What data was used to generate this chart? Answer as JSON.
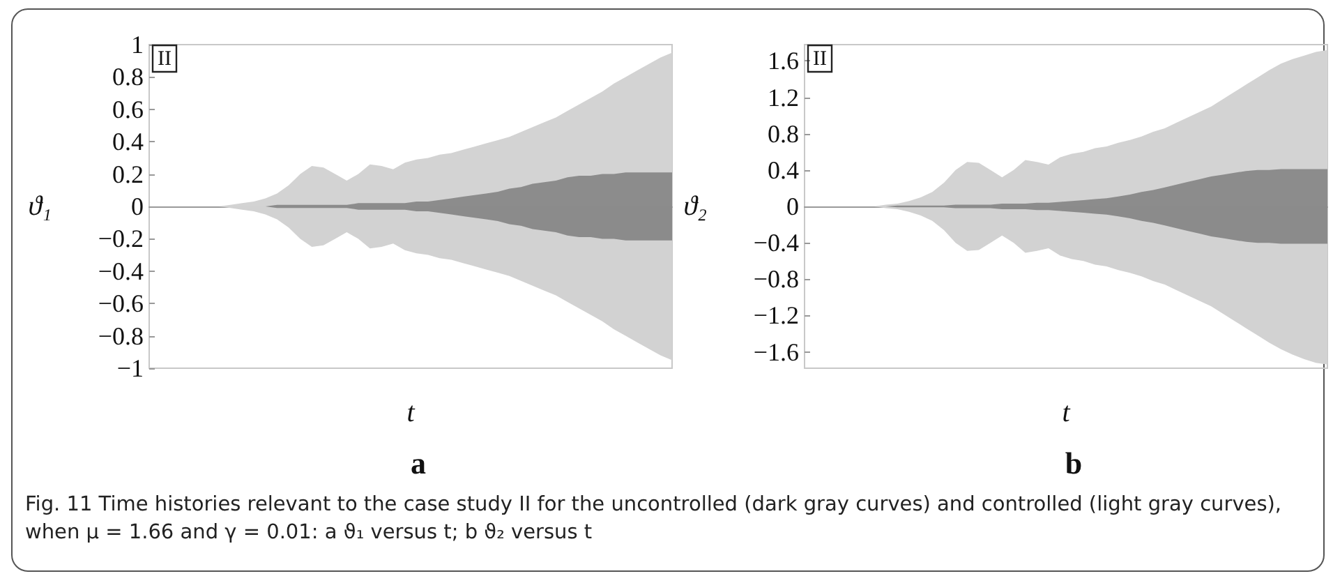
{
  "chart_data": [
    {
      "type": "area",
      "title": "a",
      "xlabel": "t",
      "ylabel": "ϑ₁",
      "ylim": [
        -1,
        1
      ],
      "yticks": [
        -1,
        -0.8,
        -0.6,
        -0.4,
        -0.2,
        0,
        0.2,
        0.4,
        0.6,
        0.8,
        1
      ],
      "tick_labels": "y",
      "categories": [
        null,
        null,
        null,
        null,
        null,
        null,
        null,
        null,
        null,
        null,
        null,
        null,
        null,
        null,
        null,
        null,
        null,
        null,
        null,
        null,
        null,
        null,
        null,
        null,
        null,
        null,
        null,
        null,
        null,
        null,
        null,
        null,
        null,
        null,
        null,
        null,
        null,
        null,
        null,
        null,
        null,
        null,
        null,
        null,
        null,
        null
      ],
      "annotations": [
        "II",
        "Fig. 11  Time histories relevant to the case study II for the uncontrolled (dark gray curves) and controlled (light gray curves), when μ = 1.66 and γ = 0.01: a ϑ₁ versus t; b ϑ₂ versus t"
      ],
      "series": [
        {
          "color": "#d3d3d3",
          "values": [
            0,
            0,
            0,
            0,
            0,
            0,
            0,
            0.01,
            0.02,
            0.03,
            0.05,
            0.08,
            0.13,
            0.2,
            0.25,
            0.24,
            0.2,
            0.16,
            0.2,
            0.26,
            0.25,
            0.23,
            0.27,
            0.29,
            0.3,
            0.32,
            0.33,
            0.35,
            0.37,
            0.39,
            0.41,
            0.43,
            0.46,
            0.49,
            0.52,
            0.55,
            0.59,
            0.63,
            0.67,
            0.71,
            0.76,
            0.8,
            0.84,
            0.88,
            0.92,
            0.95
          ]
        },
        {
          "color": "#d2d2d2",
          "values": [
            0,
            0,
            0,
            0,
            0,
            0,
            0,
            -0.01,
            -0.02,
            -0.03,
            -0.05,
            -0.08,
            -0.13,
            -0.2,
            -0.25,
            -0.24,
            -0.2,
            -0.16,
            -0.2,
            -0.26,
            -0.25,
            -0.23,
            -0.27,
            -0.29,
            -0.3,
            -0.32,
            -0.33,
            -0.35,
            -0.37,
            -0.39,
            -0.41,
            -0.43,
            -0.46,
            -0.49,
            -0.52,
            -0.55,
            -0.59,
            -0.63,
            -0.67,
            -0.71,
            -0.76,
            -0.8,
            -0.84,
            -0.88,
            -0.92,
            -0.95
          ]
        },
        {
          "color": "#8c8c8c",
          "values": [
            0,
            0,
            0,
            0,
            0,
            0,
            0,
            0,
            0,
            0,
            0,
            0.01,
            0.01,
            0.01,
            0.01,
            0.01,
            0.01,
            0.01,
            0.02,
            0.02,
            0.02,
            0.02,
            0.02,
            0.03,
            0.03,
            0.04,
            0.05,
            0.06,
            0.07,
            0.08,
            0.09,
            0.11,
            0.12,
            0.14,
            0.15,
            0.16,
            0.18,
            0.19,
            0.19,
            0.2,
            0.2,
            0.21,
            0.21,
            0.21,
            0.21,
            0.21
          ]
        },
        {
          "color": "#8b8b8b",
          "values": [
            0,
            0,
            0,
            0,
            0,
            0,
            0,
            0,
            0,
            0,
            0,
            -0.01,
            -0.01,
            -0.01,
            -0.01,
            -0.01,
            -0.01,
            -0.01,
            -0.02,
            -0.02,
            -0.02,
            -0.02,
            -0.02,
            -0.03,
            -0.03,
            -0.04,
            -0.05,
            -0.06,
            -0.07,
            -0.08,
            -0.09,
            -0.11,
            -0.12,
            -0.14,
            -0.15,
            -0.16,
            -0.18,
            -0.19,
            -0.19,
            -0.2,
            -0.2,
            -0.21,
            -0.21,
            -0.21,
            -0.21,
            -0.21
          ]
        }
      ]
    },
    {
      "type": "area",
      "title": "b",
      "xlabel": "t",
      "ylabel": "ϑ₂",
      "ylim": [
        -1.78,
        1.78
      ],
      "yticks": [
        -1.6,
        -1.2,
        -0.8,
        -0.4,
        0,
        0.4,
        0.8,
        1.2,
        1.6
      ],
      "tick_labels": "y",
      "categories": [
        null,
        null,
        null,
        null,
        null,
        null,
        null,
        null,
        null,
        null,
        null,
        null,
        null,
        null,
        null,
        null,
        null,
        null,
        null,
        null,
        null,
        null,
        null,
        null,
        null,
        null,
        null,
        null,
        null,
        null,
        null,
        null,
        null,
        null,
        null,
        null,
        null,
        null,
        null,
        null,
        null,
        null,
        null,
        null,
        null,
        null
      ],
      "annotations": [
        "II"
      ],
      "series": [
        {
          "color": "#d3d3d3",
          "values": [
            0,
            0,
            0,
            0,
            0,
            0,
            0,
            0.02,
            0.03,
            0.06,
            0.1,
            0.16,
            0.26,
            0.4,
            0.49,
            0.48,
            0.4,
            0.32,
            0.4,
            0.51,
            0.49,
            0.46,
            0.54,
            0.58,
            0.6,
            0.64,
            0.66,
            0.7,
            0.73,
            0.77,
            0.82,
            0.86,
            0.92,
            0.98,
            1.04,
            1.1,
            1.18,
            1.26,
            1.34,
            1.42,
            1.5,
            1.57,
            1.62,
            1.66,
            1.7,
            1.72
          ]
        },
        {
          "color": "#d2d2d2",
          "values": [
            0,
            0,
            0,
            0,
            0,
            0,
            0,
            -0.02,
            -0.03,
            -0.06,
            -0.1,
            -0.16,
            -0.26,
            -0.4,
            -0.49,
            -0.48,
            -0.4,
            -0.32,
            -0.4,
            -0.51,
            -0.49,
            -0.46,
            -0.54,
            -0.58,
            -0.6,
            -0.64,
            -0.66,
            -0.7,
            -0.73,
            -0.77,
            -0.82,
            -0.86,
            -0.92,
            -0.98,
            -1.04,
            -1.1,
            -1.18,
            -1.26,
            -1.34,
            -1.42,
            -1.5,
            -1.57,
            -1.63,
            -1.68,
            -1.72,
            -1.74
          ]
        },
        {
          "color": "#8c8c8c",
          "values": [
            0,
            0,
            0,
            0,
            0,
            0,
            0,
            0,
            0.01,
            0.01,
            0.01,
            0.01,
            0.01,
            0.02,
            0.02,
            0.02,
            0.02,
            0.03,
            0.03,
            0.03,
            0.04,
            0.04,
            0.05,
            0.06,
            0.07,
            0.08,
            0.09,
            0.11,
            0.13,
            0.16,
            0.18,
            0.21,
            0.24,
            0.27,
            0.3,
            0.33,
            0.35,
            0.37,
            0.39,
            0.4,
            0.4,
            0.41,
            0.41,
            0.41,
            0.41,
            0.41
          ]
        },
        {
          "color": "#8b8b8b",
          "values": [
            0,
            0,
            0,
            0,
            0,
            0,
            0,
            0,
            -0.01,
            -0.01,
            -0.01,
            -0.01,
            -0.01,
            -0.02,
            -0.02,
            -0.02,
            -0.02,
            -0.03,
            -0.03,
            -0.03,
            -0.04,
            -0.04,
            -0.05,
            -0.06,
            -0.07,
            -0.08,
            -0.09,
            -0.11,
            -0.13,
            -0.16,
            -0.18,
            -0.21,
            -0.24,
            -0.27,
            -0.3,
            -0.33,
            -0.35,
            -0.37,
            -0.39,
            -0.4,
            -0.4,
            -0.41,
            -0.41,
            -0.41,
            -0.41,
            -0.41
          ]
        }
      ]
    }
  ]
}
